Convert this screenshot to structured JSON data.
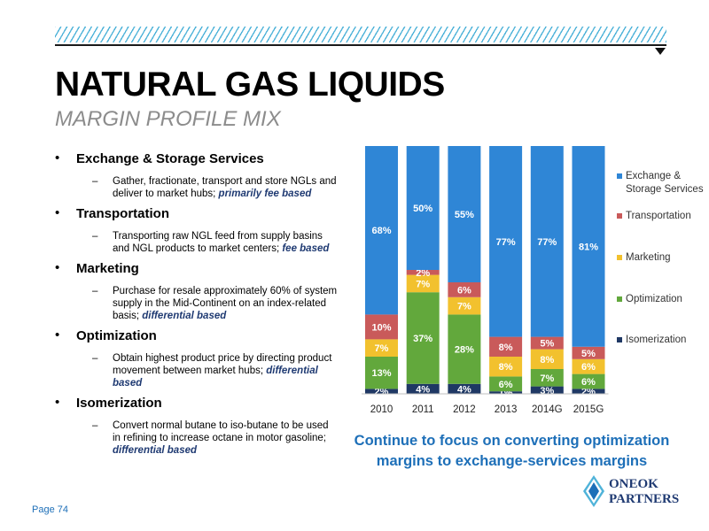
{
  "header": {
    "title": "NATURAL GAS LIQUIDS",
    "subtitle": "MARGIN PROFILE MIX"
  },
  "bullets": [
    {
      "head": "Exchange & Storage Services",
      "sub": "Gather, fractionate, transport and store NGLs and deliver to market hubs;",
      "emph": "primarily fee based"
    },
    {
      "head": "Transportation",
      "sub": "Transporting raw NGL feed from supply basins and NGL products to market centers;",
      "emph": "fee based"
    },
    {
      "head": "Marketing",
      "sub": "Purchase for resale approximately 60% of system supply in the Mid-Continent on an index-related basis;",
      "emph": "differential based"
    },
    {
      "head": "Optimization",
      "sub": "Obtain highest product price by directing product movement between market hubs;",
      "emph": "differential based"
    },
    {
      "head": "Isomerization",
      "sub": "Convert normal butane to iso-butane to be used in refining to increase octane in motor gasoline;",
      "emph": "differential based"
    }
  ],
  "chart_data": {
    "type": "bar",
    "stacked": true,
    "categories": [
      "2010",
      "2011",
      "2012",
      "2013",
      "2014G",
      "2015G"
    ],
    "series": [
      {
        "name": "Isomerization",
        "color": "#1f3864",
        "values": [
          2,
          4,
          4,
          1,
          3,
          2
        ]
      },
      {
        "name": "Optimization",
        "color": "#62a83c",
        "values": [
          13,
          37,
          28,
          6,
          7,
          6
        ]
      },
      {
        "name": "Marketing",
        "color": "#f2c12e",
        "values": [
          7,
          7,
          7,
          8,
          8,
          6
        ]
      },
      {
        "name": "Transportation",
        "color": "#c95a5a",
        "values": [
          10,
          2,
          6,
          8,
          5,
          5
        ]
      },
      {
        "name": "Exchange & Storage Services",
        "color": "#2f86d6",
        "values": [
          68,
          50,
          55,
          77,
          77,
          81
        ]
      }
    ],
    "legend_position": "right",
    "ylim": [
      0,
      100
    ],
    "grid": false
  },
  "callout": "Continue to focus on converting optimization margins to exchange-services margins",
  "footer": {
    "page": "Page 74",
    "logo_line1": "ONEOK",
    "logo_line2": "PARTNERS"
  }
}
